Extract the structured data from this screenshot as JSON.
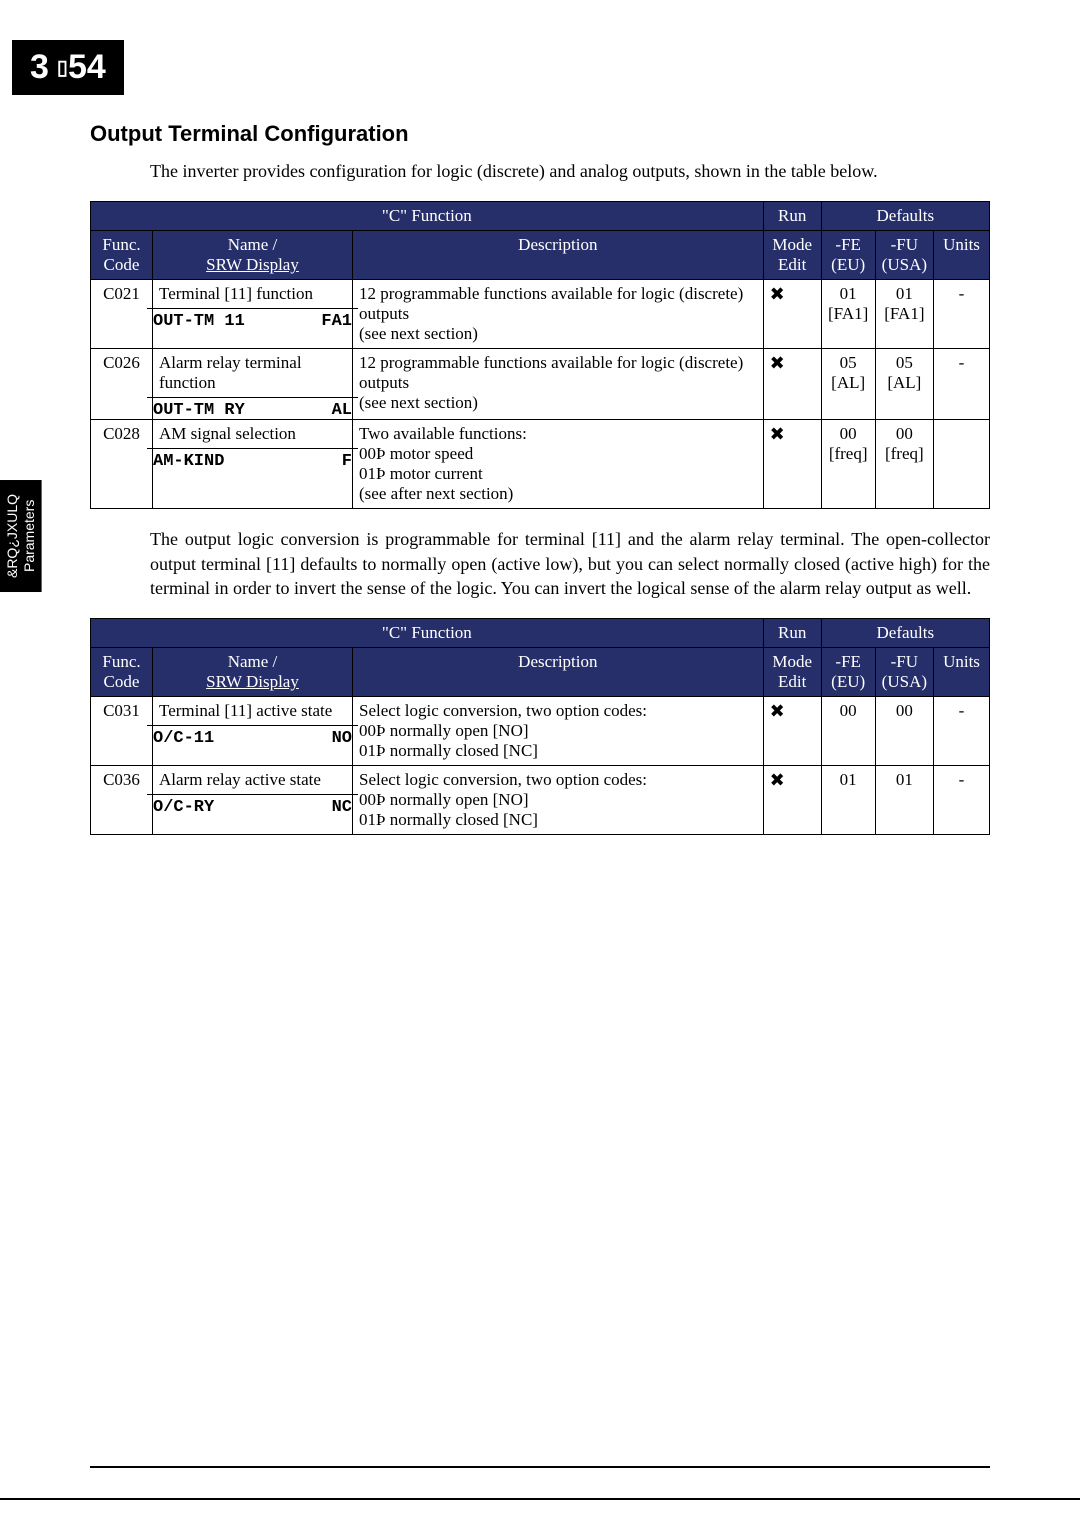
{
  "page_header": {
    "chapter": "3",
    "page": "54"
  },
  "side_tab": "&RQ¿JXULQ\nParameters",
  "section_title": "Output Terminal Configuration",
  "intro_text": "The inverter provides configuration for logic (discrete) and analog outputs, shown in the table below.",
  "mid_text": "The output logic conversion is programmable for terminal [11] and the alarm relay terminal. The open-collector output terminal [11] defaults to normally open (active low), but you can select normally closed (active high) for the terminal in order to invert the sense of the logic. You can invert the logical sense of the alarm relay output as well.",
  "table_headers": {
    "group": "\"C\" Function",
    "run_top": "Run",
    "run_bot": "Mode Edit",
    "defaults": "Defaults",
    "func_code": "Func. Code",
    "name": "Name /",
    "srw": "SRW Display",
    "desc": "Description",
    "fe": "-FE (EU)",
    "fu": "-FU (USA)",
    "units": "Units"
  },
  "table1_rows": [
    {
      "code": "C021",
      "name": "Terminal [11] function",
      "srw_l": "OUT-TM 11",
      "srw_r": "FA1",
      "desc": "12 programmable functions available for logic (discrete) outputs\n(see next section)",
      "run": "✗",
      "fe": "01\n[FA1]",
      "fu": "01\n[FA1]",
      "units": "-"
    },
    {
      "code": "C026",
      "name": "Alarm relay terminal function",
      "srw_l": "OUT-TM RY",
      "srw_r": "AL",
      "desc": "12 programmable functions available for logic (discrete) outputs\n(see next section)",
      "run": "✗",
      "fe": "05\n[AL]",
      "fu": "05\n[AL]",
      "units": "-"
    },
    {
      "code": "C028",
      "name": "AM signal selection",
      "srw_l": "AM-KIND",
      "srw_r": "F",
      "desc": "Two available functions:\n00Þ motor speed\n01Þ motor current\n(see after next section)",
      "run": "✗",
      "fe": "00\n[freq]",
      "fu": "00\n[freq]",
      "units": ""
    }
  ],
  "table2_rows": [
    {
      "code": "C031",
      "name": "Terminal [11] active state",
      "srw_l": "O/C-11",
      "srw_r": "NO",
      "desc": "Select logic conversion, two option codes:\n00Þ normally open [NO]\n01Þ normally closed [NC]",
      "run": "✗",
      "fe": "00",
      "fu": "00",
      "units": "-"
    },
    {
      "code": "C036",
      "name": "Alarm relay active state",
      "srw_l": "O/C-RY",
      "srw_r": "NC",
      "desc": "Select logic conversion, two option codes:\n00Þ normally open [NO]\n01Þ normally closed [NC]",
      "run": "✗",
      "fe": "01",
      "fu": "01",
      "units": "-"
    }
  ]
}
